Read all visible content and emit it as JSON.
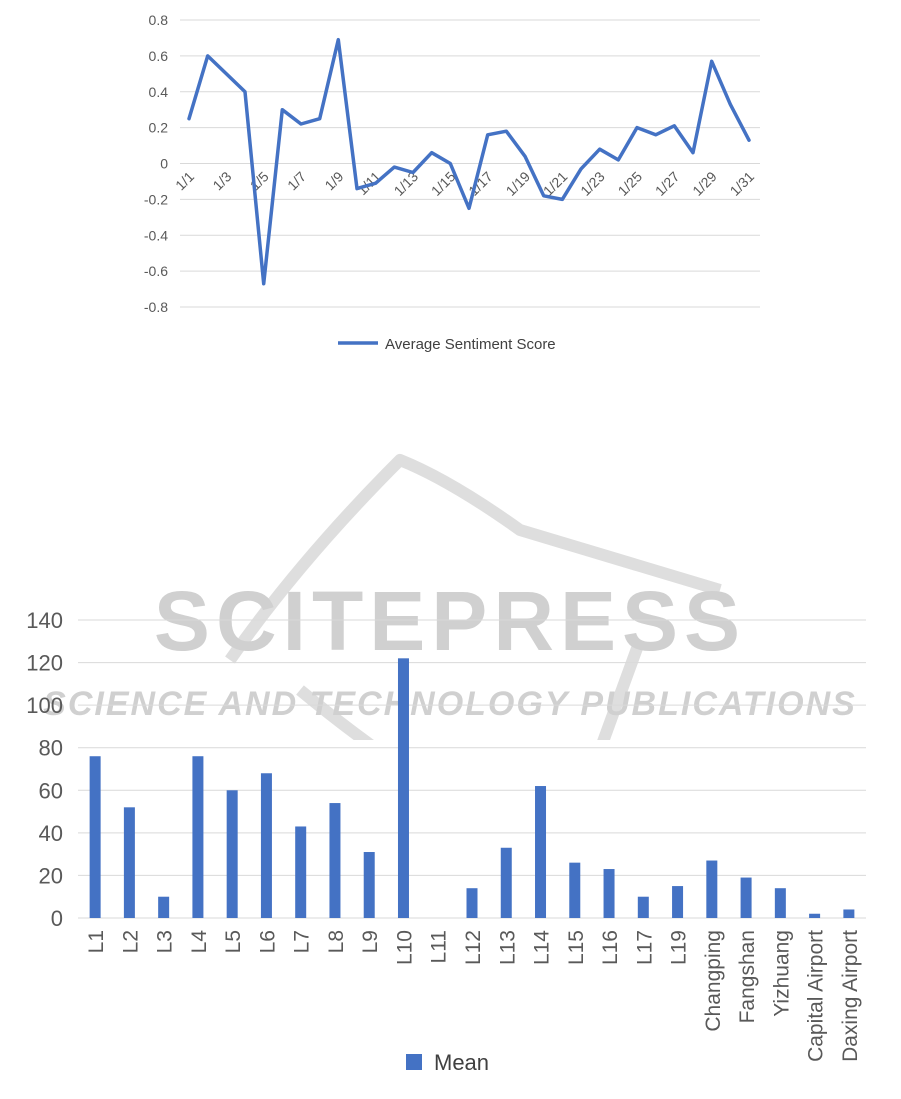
{
  "watermark": {
    "title": "SCITEPRESS",
    "subtitle": "SCIENCE AND TECHNOLOGY PUBLICATIONS",
    "color": "#d0d0d0"
  },
  "chart_data": [
    {
      "type": "line",
      "x": [
        "1/1",
        "1/2",
        "1/3",
        "1/4",
        "1/5",
        "1/6",
        "1/7",
        "1/8",
        "1/9",
        "1/10",
        "1/11",
        "1/12",
        "1/13",
        "1/14",
        "1/15",
        "1/16",
        "1/17",
        "1/18",
        "1/19",
        "1/20",
        "1/21",
        "1/22",
        "1/23",
        "1/24",
        "1/25",
        "1/26",
        "1/27",
        "1/28",
        "1/29",
        "1/30",
        "1/31"
      ],
      "x_tick_labels": [
        "1/1",
        "1/3",
        "1/5",
        "1/7",
        "1/9",
        "1/11",
        "1/13",
        "1/15",
        "1/17",
        "1/19",
        "1/21",
        "1/23",
        "1/25",
        "1/27",
        "1/29",
        "1/31"
      ],
      "series": [
        {
          "name": "Average Sentiment Score",
          "color": "#4472c4",
          "values": [
            0.25,
            0.6,
            0.5,
            0.4,
            -0.67,
            0.3,
            0.22,
            0.25,
            0.69,
            -0.14,
            -0.11,
            -0.02,
            -0.05,
            0.06,
            0.0,
            -0.25,
            0.16,
            0.18,
            0.04,
            -0.18,
            -0.2,
            -0.03,
            0.08,
            0.02,
            0.2,
            0.16,
            0.21,
            0.06,
            0.57,
            0.33,
            0.13
          ]
        }
      ],
      "y_ticks": [
        "0.8",
        "0.6",
        "0.4",
        "0.2",
        "0",
        "-0.2",
        "-0.4",
        "-0.6",
        "-0.8"
      ],
      "ylim": [
        -0.8,
        0.8
      ],
      "grid": true,
      "legend_position": "bottom"
    },
    {
      "type": "bar",
      "categories": [
        "L1",
        "L2",
        "L3",
        "L4",
        "L5",
        "L6",
        "L7",
        "L8",
        "L9",
        "L10",
        "L11",
        "L12",
        "L13",
        "L14",
        "L15",
        "L16",
        "L17",
        "L19",
        "Changping",
        "Fangshan",
        "Yizhuang",
        "Capital Airport",
        "Daxing Airport"
      ],
      "series": [
        {
          "name": "Mean",
          "color": "#4472c4",
          "values": [
            76,
            52,
            10,
            76,
            60,
            68,
            43,
            54,
            31,
            122,
            0,
            14,
            33,
            62,
            26,
            23,
            10,
            15,
            27,
            19,
            14,
            2,
            4
          ]
        }
      ],
      "y_ticks": [
        "140",
        "120",
        "100",
        "80",
        "60",
        "40",
        "20",
        "0"
      ],
      "ylim": [
        0,
        140
      ],
      "grid": true,
      "legend_position": "bottom"
    }
  ]
}
